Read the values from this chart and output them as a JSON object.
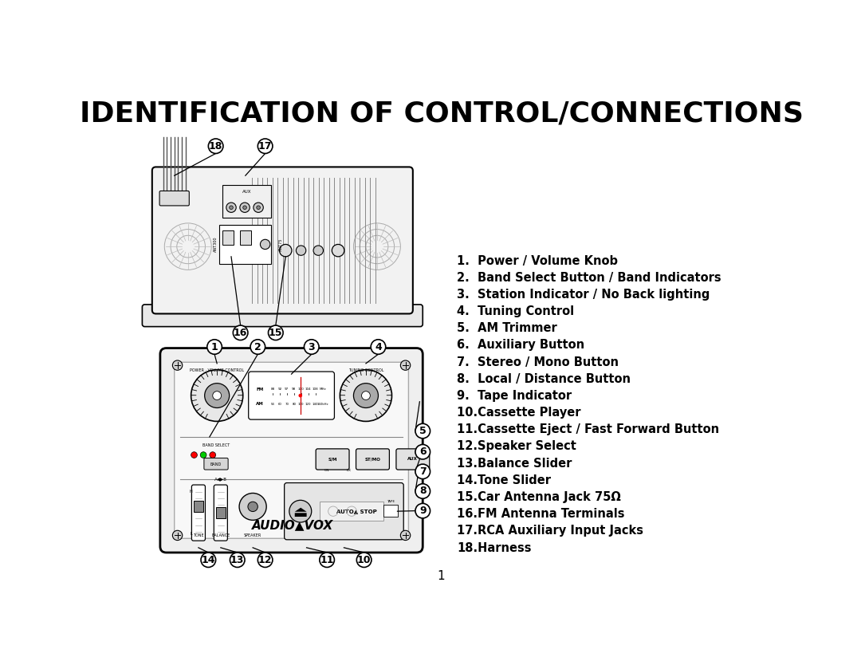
{
  "title": "IDENTIFICATION OF CONTROL/CONNECTIONS",
  "title_fontsize": 26,
  "title_fontweight": "bold",
  "background_color": "#ffffff",
  "text_color": "#000000",
  "items_plain": [
    [
      "1.",
      "  Power / Volume Knob"
    ],
    [
      "2.",
      "  Band Select Button / Band Indicators"
    ],
    [
      "3.",
      "  Station Indicator / No Back lighting"
    ],
    [
      "4.",
      "  Tuning Control"
    ],
    [
      "5.",
      "  AM Trimmer"
    ],
    [
      "6.",
      "  Auxiliary Button"
    ],
    [
      "7.",
      "  Stereo / Mono Button"
    ],
    [
      "8.",
      "  Local / Distance Button"
    ],
    [
      "9.",
      "  Tape Indicator"
    ],
    [
      "10.",
      "Cassette Player"
    ],
    [
      "11.",
      "Cassette Eject / Fast Forward Button"
    ],
    [
      "12.",
      "Speaker Select"
    ],
    [
      "13.",
      "Balance Slider"
    ],
    [
      "14.",
      "Tone Slider"
    ],
    [
      "15.",
      "Car Antenna Jack 75Ω"
    ],
    [
      "16.",
      "FM Antenna Terminals"
    ],
    [
      "17.",
      "RCA Auxiliary Input Jacks"
    ],
    [
      "18.",
      "Harness"
    ]
  ],
  "page_number": "1"
}
